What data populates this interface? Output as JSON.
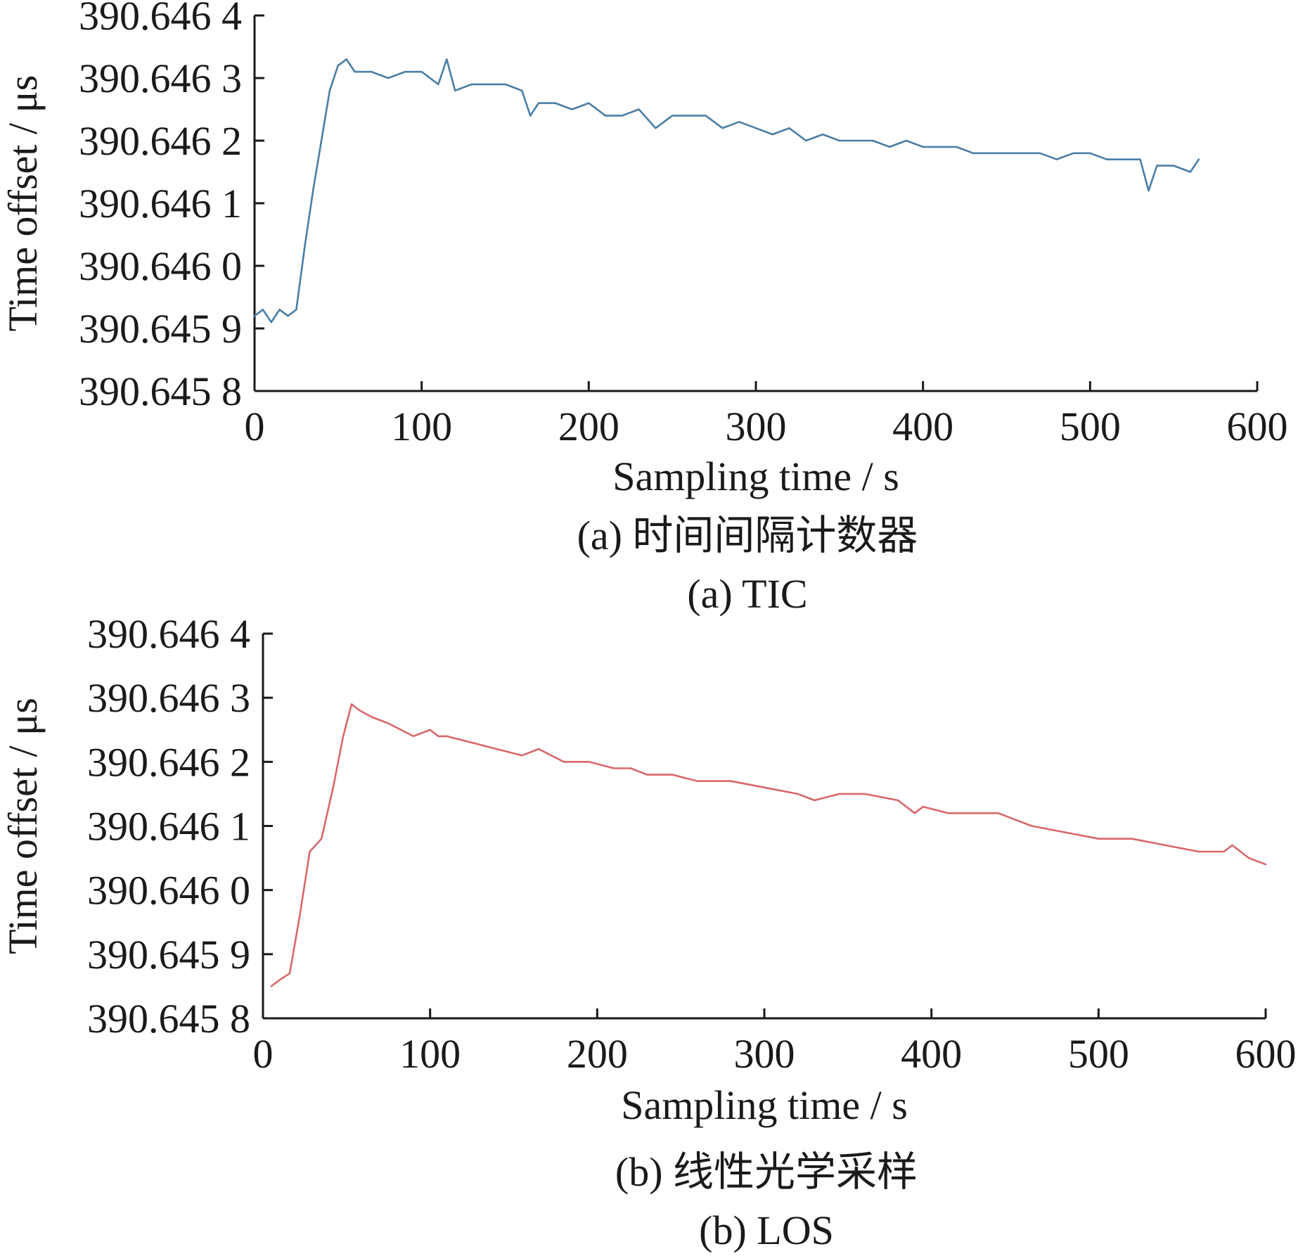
{
  "figure": {
    "panels": [
      {
        "id": "a",
        "caption_cn": "(a) 时间间隔计数器",
        "caption_en": "(a) TIC"
      },
      {
        "id": "b",
        "caption_cn": "(b) 线性光学采样",
        "caption_en": "(b) LOS"
      }
    ]
  },
  "chart_data": [
    {
      "type": "line",
      "xlabel": "Sampling time / s",
      "ylabel": "Time offset / μs",
      "xlim": [
        0,
        600
      ],
      "ylim": [
        390.6458,
        390.6464
      ],
      "x_ticks": [
        0,
        100,
        200,
        300,
        400,
        500,
        600
      ],
      "x_tick_labels": [
        "0",
        "100",
        "200",
        "300",
        "400",
        "500",
        "600"
      ],
      "y_ticks": [
        390.6458,
        390.6459,
        390.646,
        390.6461,
        390.6462,
        390.6463,
        390.6464
      ],
      "y_tick_labels": [
        "390.645 8",
        "390.645 9",
        "390.646 0",
        "390.646 1",
        "390.646 2",
        "390.646 3",
        "390.646 4"
      ],
      "grid": false,
      "colors": {
        "line": "#4a7ea6",
        "axis": "#1a1a1a"
      },
      "series": [
        {
          "x": [
            0,
            5,
            10,
            15,
            20,
            25,
            30,
            35,
            40,
            45,
            50,
            55,
            60,
            70,
            80,
            90,
            100,
            110,
            115,
            120,
            130,
            140,
            150,
            160,
            165,
            170,
            180,
            190,
            200,
            210,
            220,
            230,
            240,
            250,
            260,
            270,
            280,
            290,
            300,
            310,
            320,
            330,
            340,
            350,
            360,
            370,
            380,
            390,
            400,
            410,
            420,
            430,
            440,
            450,
            460,
            470,
            480,
            490,
            500,
            510,
            520,
            530,
            535,
            540,
            550,
            560,
            565
          ],
          "y": [
            390.64592,
            390.64593,
            390.64591,
            390.64593,
            390.64592,
            390.64593,
            390.64603,
            390.64612,
            390.6462,
            390.64628,
            390.64632,
            390.64633,
            390.64631,
            390.64631,
            390.6463,
            390.64631,
            390.64631,
            390.64629,
            390.64633,
            390.64628,
            390.64629,
            390.64629,
            390.64629,
            390.64628,
            390.64624,
            390.64626,
            390.64626,
            390.64625,
            390.64626,
            390.64624,
            390.64624,
            390.64625,
            390.64622,
            390.64624,
            390.64624,
            390.64624,
            390.64622,
            390.64623,
            390.64622,
            390.64621,
            390.64622,
            390.6462,
            390.64621,
            390.6462,
            390.6462,
            390.6462,
            390.64619,
            390.6462,
            390.64619,
            390.64619,
            390.64619,
            390.64618,
            390.64618,
            390.64618,
            390.64618,
            390.64618,
            390.64617,
            390.64618,
            390.64618,
            390.64617,
            390.64617,
            390.64617,
            390.64612,
            390.64616,
            390.64616,
            390.64615,
            390.64617
          ]
        }
      ]
    },
    {
      "type": "line",
      "xlabel": "Sampling time / s",
      "ylabel": "Time offset / μs",
      "xlim": [
        0,
        600
      ],
      "ylim": [
        390.6458,
        390.6464
      ],
      "x_ticks": [
        0,
        100,
        200,
        300,
        400,
        500,
        600
      ],
      "x_tick_labels": [
        "0",
        "100",
        "200",
        "300",
        "400",
        "500",
        "600"
      ],
      "y_ticks": [
        390.6458,
        390.6459,
        390.646,
        390.6461,
        390.6462,
        390.6463,
        390.6464
      ],
      "y_tick_labels": [
        "390.645 8",
        "390.645 9",
        "390.646 0",
        "390.646 1",
        "390.646 2",
        "390.646 3",
        "390.646 4"
      ],
      "grid": false,
      "colors": {
        "line": "#d9676a",
        "axis": "#1a1a1a"
      },
      "series": [
        {
          "x": [
            5,
            10,
            16,
            22,
            28,
            35,
            42,
            48,
            53,
            58,
            65,
            75,
            90,
            100,
            105,
            110,
            125,
            140,
            155,
            165,
            180,
            195,
            210,
            220,
            230,
            245,
            260,
            280,
            300,
            320,
            330,
            345,
            360,
            380,
            390,
            395,
            410,
            425,
            440,
            460,
            480,
            500,
            520,
            540,
            560,
            575,
            580,
            590,
            600
          ],
          "y": [
            390.64585,
            390.64586,
            390.64587,
            390.64596,
            390.64606,
            390.64608,
            390.64616,
            390.64624,
            390.64629,
            390.64628,
            390.64627,
            390.64626,
            390.64624,
            390.64625,
            390.64624,
            390.64624,
            390.64623,
            390.64622,
            390.64621,
            390.64622,
            390.6462,
            390.6462,
            390.64619,
            390.64619,
            390.64618,
            390.64618,
            390.64617,
            390.64617,
            390.64616,
            390.64615,
            390.64614,
            390.64615,
            390.64615,
            390.64614,
            390.64612,
            390.64613,
            390.64612,
            390.64612,
            390.64612,
            390.6461,
            390.64609,
            390.64608,
            390.64608,
            390.64607,
            390.64606,
            390.64606,
            390.64607,
            390.64605,
            390.64604
          ]
        }
      ]
    }
  ]
}
